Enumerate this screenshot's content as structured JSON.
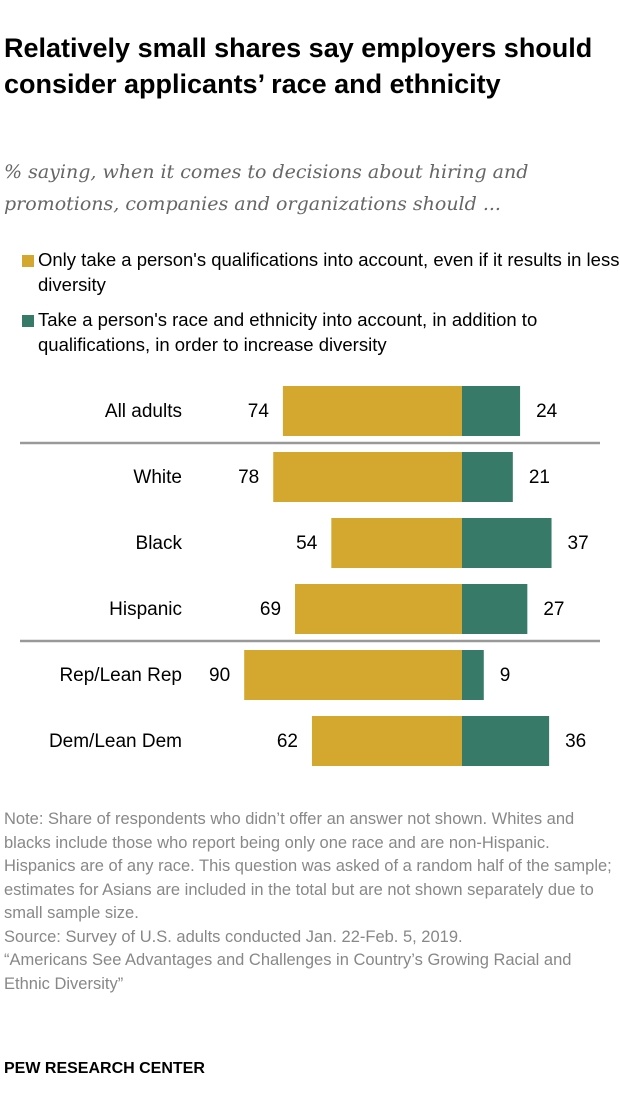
{
  "title": "Relatively small shares say employers should consider applicants’ race and ethnicity",
  "subtitle": "% saying, when it comes to decisions about hiring and promotions, companies and organizations should ...",
  "note": "Note: Share of respondents who didn’t offer an answer not shown. Whites and blacks include those who report being only one race and are non-Hispanic. Hispanics are of any race. This question was asked of a random half of the sample; estimates for Asians are included in the total but are not shown separately due to small sample size.",
  "source": "Source: Survey of U.S. adults conducted Jan. 22-Feb. 5, 2019.",
  "report": "“Americans See Advantages and Challenges in Country’s Growing Racial and Ethnic Diversity”",
  "brand": "PEW RESEARCH CENTER",
  "chart_data": {
    "type": "bar",
    "orientation": "horizontal diverging",
    "categories": [
      "All adults",
      "White",
      "Black",
      "Hispanic",
      "Rep/Lean Rep",
      "Dem/Lean Dem"
    ],
    "series": [
      {
        "name": "Only take a person's qualifications into account, even if it results in less diversity",
        "values": [
          74,
          78,
          54,
          69,
          90,
          62
        ],
        "color": "#D4A72F"
      },
      {
        "name": "Take a person's race and ethnicity into account, in addition to qualifications, in order to increase diversity",
        "values": [
          24,
          21,
          37,
          27,
          9,
          36
        ],
        "color": "#377A68"
      }
    ],
    "legend": "top",
    "grid": false,
    "group_dividers_after": [
      "All adults",
      "Hispanic"
    ]
  }
}
